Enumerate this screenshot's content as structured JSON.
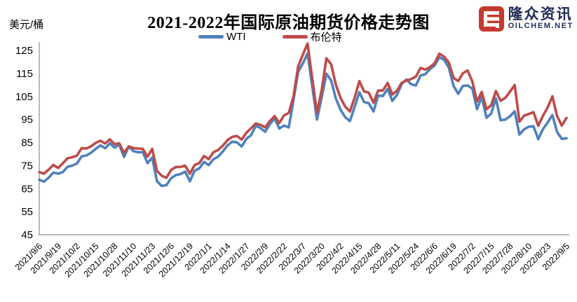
{
  "header": {
    "unit_label": "美元/桶",
    "title": "2021-2022年国际原油期货价格走势图"
  },
  "logo": {
    "brand_name": "隆众资讯",
    "brand_domain": "OILCHEM.NET",
    "icon_color": "#C43A2E",
    "text_color": "#222E55"
  },
  "chart_data": {
    "type": "line",
    "title": "2021-2022年国际原油期货价格走势图",
    "ylabel": "美元/桶",
    "ylim": [
      45,
      125
    ],
    "y_tick_step": 10,
    "y_ticks": [
      45,
      55,
      65,
      75,
      85,
      95,
      105,
      115,
      125
    ],
    "grid": false,
    "legend_position": "top-center",
    "axis_color": "#8C8C8C",
    "x_tick_labels": [
      "2021/9/6",
      "2021/9/19",
      "2021/10/2",
      "2021/10/15",
      "2021/10/28",
      "2021/11/10",
      "2021/11/23",
      "2021/12/6",
      "2021/12/19",
      "2022/1/1",
      "2022/1/14",
      "2022/1/27",
      "2022/2/9",
      "2022/2/22",
      "2022/3/7",
      "2022/3/20",
      "2022/4/2",
      "2022/4/15",
      "2022/4/28",
      "2022/5/11",
      "2022/5/24",
      "2022/6/6",
      "2022/6/19",
      "2022/7/2",
      "2022/7/15",
      "2022/7/28",
      "2022/8/10",
      "2022/8/23",
      "2022/9/5"
    ],
    "points_per_tick_interval": 4,
    "series": [
      {
        "name": "WTI",
        "color": "#4F81BD",
        "values": [
          68.9,
          68.0,
          69.8,
          72.0,
          71.5,
          72.2,
          74.5,
          75.0,
          75.9,
          79.0,
          79.4,
          80.6,
          82.3,
          83.8,
          82.5,
          84.7,
          82.8,
          84.1,
          78.8,
          83.3,
          81.3,
          80.8,
          80.9,
          76.1,
          78.5,
          68.2,
          66.2,
          66.5,
          69.5,
          70.9,
          71.3,
          72.4,
          68.2,
          72.8,
          73.8,
          76.6,
          75.2,
          77.8,
          78.9,
          81.2,
          83.8,
          85.4,
          85.1,
          83.3,
          86.6,
          88.2,
          92.3,
          91.3,
          89.7,
          93.1,
          95.5,
          91.1,
          92.4,
          91.6,
          103.4,
          115.7,
          119.4,
          123.7,
          109.3,
          95.0,
          104.7,
          114.9,
          112.0,
          104.2,
          99.3,
          96.0,
          94.3,
          100.6,
          106.9,
          102.6,
          102.1,
          98.5,
          105.4,
          105.2,
          108.3,
          103.1,
          105.7,
          110.5,
          112.4,
          110.3,
          109.8,
          114.1,
          114.7,
          116.9,
          118.5,
          122.1,
          120.9,
          117.6,
          109.6,
          106.2,
          109.6,
          109.8,
          108.4,
          99.5,
          104.8,
          95.8,
          97.6,
          104.2,
          94.7,
          95.0,
          96.4,
          98.6,
          88.5,
          90.8,
          91.9,
          92.1,
          86.5,
          90.8,
          93.7,
          97.0,
          89.6,
          86.6,
          86.9
        ]
      },
      {
        "name": "布伦特",
        "color": "#BE4B48",
        "values": [
          72.2,
          71.5,
          73.3,
          75.3,
          74.0,
          76.0,
          78.2,
          78.6,
          79.3,
          82.6,
          82.4,
          83.4,
          84.9,
          85.8,
          84.6,
          86.4,
          84.3,
          84.7,
          80.5,
          83.4,
          82.6,
          82.4,
          82.3,
          78.9,
          82.3,
          72.7,
          70.6,
          69.7,
          73.1,
          74.4,
          74.4,
          75.0,
          71.5,
          75.3,
          76.1,
          79.2,
          77.8,
          80.8,
          81.8,
          83.7,
          86.1,
          87.5,
          87.9,
          86.3,
          89.3,
          91.2,
          93.3,
          92.7,
          91.6,
          94.4,
          96.5,
          93.5,
          96.8,
          97.9,
          105.0,
          118.1,
          123.2,
          128.0,
          112.7,
          98.0,
          107.9,
          121.6,
          119.0,
          110.2,
          104.4,
          100.6,
          98.5,
          104.6,
          111.7,
          107.2,
          106.7,
          102.3,
          107.6,
          107.6,
          110.9,
          105.9,
          107.5,
          111.0,
          111.9,
          112.6,
          113.6,
          117.4,
          116.7,
          117.8,
          119.5,
          123.6,
          122.3,
          119.8,
          113.1,
          111.7,
          115.1,
          116.3,
          111.6,
          102.8,
          107.0,
          99.5,
          101.2,
          107.4,
          103.2,
          104.4,
          107.1,
          110.0,
          94.1,
          96.7,
          97.4,
          98.2,
          92.3,
          96.6,
          100.2,
          105.1,
          96.5,
          92.4,
          95.7
        ]
      }
    ]
  }
}
